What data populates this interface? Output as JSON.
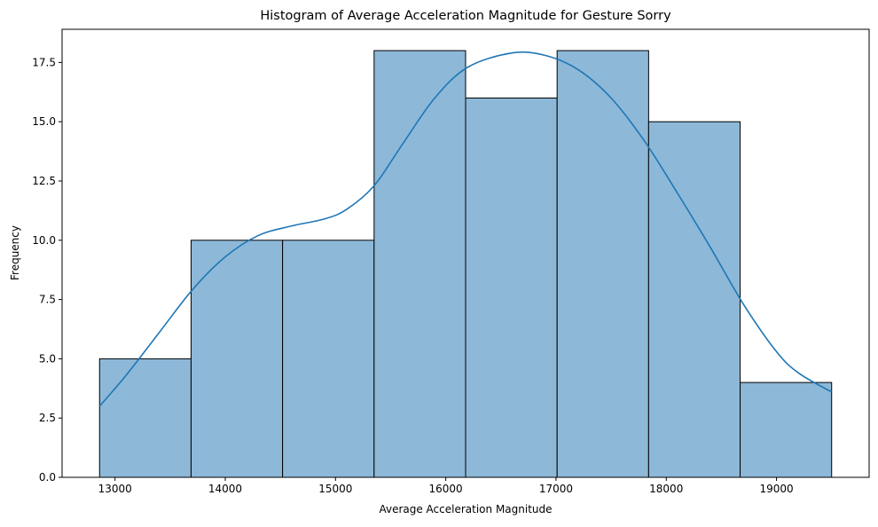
{
  "chart_data": {
    "type": "bar",
    "subtype": "histogram-with-kde",
    "title": "Histogram of Average Acceleration Magnitude for Gesture Sorry",
    "xlabel": "Average Acceleration Magnitude",
    "ylabel": "Frequency",
    "xlim": [
      12520,
      19840
    ],
    "ylim": [
      0,
      18.9
    ],
    "x_ticks": [
      13000,
      14000,
      15000,
      16000,
      17000,
      18000,
      19000
    ],
    "x_tick_labels": [
      "13000",
      "14000",
      "15000",
      "16000",
      "17000",
      "18000",
      "19000"
    ],
    "y_ticks": [
      0,
      2.5,
      5,
      7.5,
      10,
      12.5,
      15,
      17.5
    ],
    "y_tick_labels": [
      "0.0",
      "2.5",
      "5.0",
      "7.5",
      "10.0",
      "12.5",
      "15.0",
      "17.5"
    ],
    "bins": [
      {
        "x0": 12860,
        "x1": 13690,
        "count": 5
      },
      {
        "x0": 13690,
        "x1": 14520,
        "count": 10
      },
      {
        "x0": 14520,
        "x1": 15350,
        "count": 10
      },
      {
        "x0": 15350,
        "x1": 16180,
        "count": 18
      },
      {
        "x0": 16180,
        "x1": 17010,
        "count": 16
      },
      {
        "x0": 17010,
        "x1": 17840,
        "count": 18
      },
      {
        "x0": 17840,
        "x1": 18670,
        "count": 15
      },
      {
        "x0": 18670,
        "x1": 19500,
        "count": 4
      }
    ],
    "kde": {
      "x": [
        12860,
        13100,
        13400,
        13700,
        14000,
        14300,
        14600,
        14900,
        15100,
        15350,
        15600,
        15900,
        16200,
        16600,
        16900,
        17200,
        17500,
        17800,
        18100,
        18400,
        18700,
        19000,
        19200,
        19500
      ],
      "y": [
        3.0,
        4.3,
        6.1,
        7.9,
        9.3,
        10.2,
        10.6,
        10.9,
        11.3,
        12.3,
        14.0,
        16.0,
        17.3,
        17.9,
        17.8,
        17.2,
        16.0,
        14.2,
        12.0,
        9.7,
        7.3,
        5.3,
        4.4,
        3.6
      ]
    },
    "grid": false,
    "legend": "none",
    "colors": {
      "bar_fill": "#8db8d8",
      "bar_edge": "#000000",
      "kde_line": "#1f77b4",
      "axis": "#000000"
    }
  }
}
